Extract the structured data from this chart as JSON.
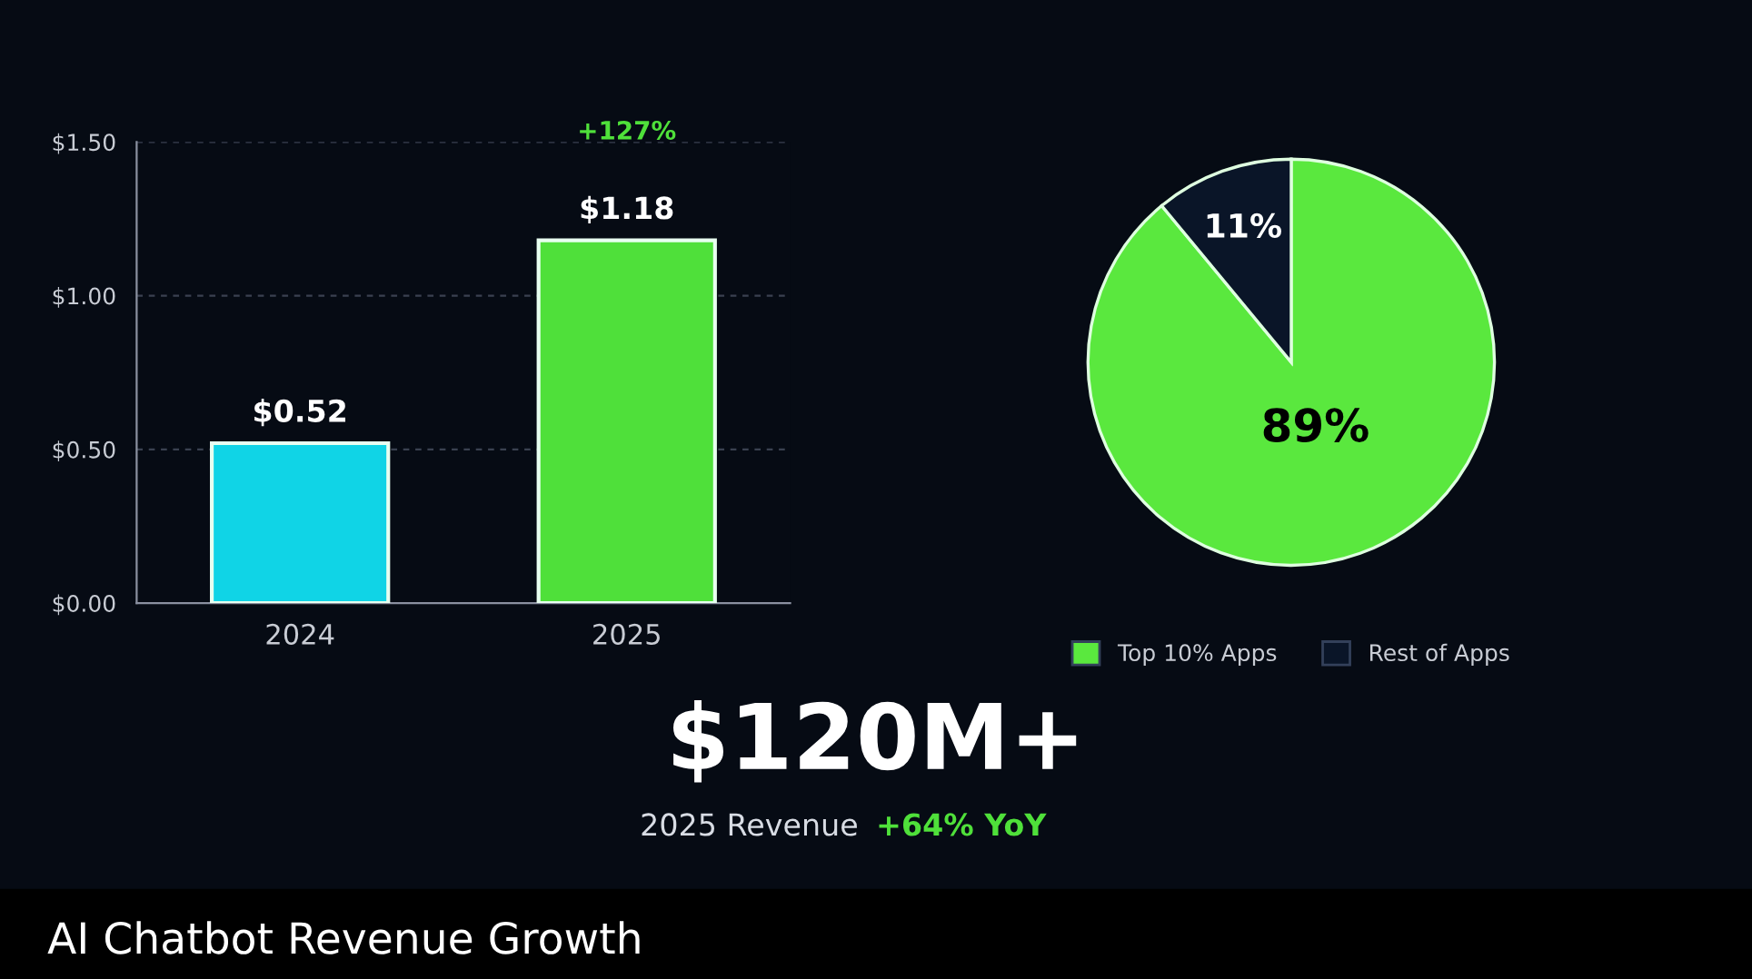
{
  "chart_data": [
    {
      "type": "bar",
      "categories": [
        "2024",
        "2025"
      ],
      "values": [
        0.52,
        1.18
      ],
      "colors": [
        "#10d4e6",
        "#4fe03a"
      ],
      "value_labels": [
        "$0.52",
        "$1.18"
      ],
      "ylim": [
        0,
        1.5
      ],
      "yticks": [
        {
          "value": 0,
          "label": "$0.00"
        },
        {
          "value": 0.5,
          "label": "$0.50"
        },
        {
          "value": 1.0,
          "label": "$1.00"
        },
        {
          "value": 1.5,
          "label": "$1.50"
        }
      ],
      "grid": "y",
      "annotations": [
        "+127%"
      ]
    },
    {
      "type": "pie",
      "categories": [
        "Top 10% Apps",
        "Rest of Apps"
      ],
      "values": [
        89,
        11
      ],
      "colors": [
        "#5ae83e",
        "#0a1528"
      ],
      "value_labels": [
        "89%",
        "11%"
      ],
      "legend": "bottom"
    },
    {
      "type": "other",
      "title": "$120M+",
      "subtitle": "2025 Revenue",
      "annotations": [
        "+64% YoY",
        "AI Chatbot Revenue Growth"
      ]
    }
  ]
}
